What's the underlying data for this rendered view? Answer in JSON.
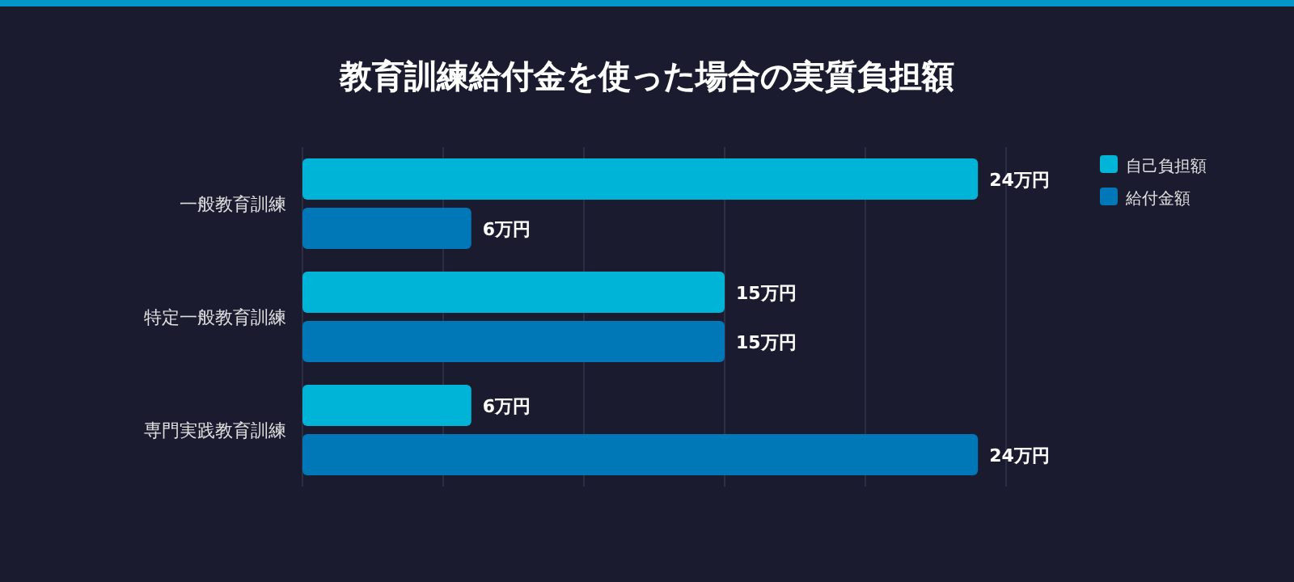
{
  "chart_data": {
    "type": "bar",
    "orientation": "horizontal",
    "title": "教育訓練給付金を使った場合の実質負担額",
    "categories": [
      "一般教育訓練",
      "特定一般教育訓練",
      "専門実践教育訓練"
    ],
    "series": [
      {
        "name": "自己負担額",
        "color": "#00b4d8",
        "values": [
          24,
          15,
          6
        ],
        "value_labels": [
          "24万円",
          "15万円",
          "6万円"
        ]
      },
      {
        "name": "給付金額",
        "color": "#0077b6",
        "values": [
          6,
          15,
          24
        ],
        "value_labels": [
          "6万円",
          "15万円",
          "24万円"
        ]
      }
    ],
    "xlim": [
      0,
      25
    ],
    "xticks": [
      {
        "value": 0,
        "label": null
      },
      {
        "value": 5,
        "label": null
      },
      {
        "value": 10,
        "label": null
      },
      {
        "value": 15,
        "label": null
      },
      {
        "value": 20,
        "label": null
      },
      {
        "value": 25,
        "label": null
      }
    ],
    "grid": "x",
    "legend": "top right"
  }
}
